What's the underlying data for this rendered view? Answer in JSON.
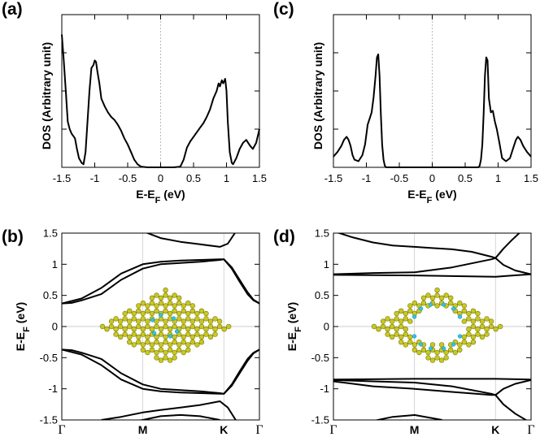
{
  "chart_data": [
    {
      "id": "a",
      "panel_label": "(a)",
      "type": "line",
      "xlabel": "E-E",
      "xlabel_sub": "F",
      "xlabel_unit": " (eV)",
      "ylabel": "DOS (Arbitrary unit)",
      "xlim": [
        -1.5,
        1.5
      ],
      "ylim": [
        0,
        1
      ],
      "xticks": [
        -1.5,
        -1,
        -0.5,
        0,
        0.5,
        1,
        1.5
      ],
      "xtick_labels": [
        "-1.5",
        "-1",
        "-0.5",
        "0",
        "0.5",
        "1",
        "1.5"
      ],
      "series": [
        {
          "name": "DOS",
          "x": [
            -1.5,
            -1.47,
            -1.44,
            -1.41,
            -1.38,
            -1.35,
            -1.3,
            -1.27,
            -1.24,
            -1.2,
            -1.17,
            -1.14,
            -1.11,
            -1.08,
            -1.05,
            -1.02,
            -1.0,
            -0.98,
            -0.96,
            -0.93,
            -0.9,
            -0.85,
            -0.8,
            -0.75,
            -0.7,
            -0.65,
            -0.6,
            -0.55,
            -0.5,
            -0.45,
            -0.4,
            -0.35,
            -0.3,
            -0.2,
            0,
            0.2,
            0.3,
            0.35,
            0.4,
            0.45,
            0.5,
            0.55,
            0.6,
            0.65,
            0.7,
            0.75,
            0.8,
            0.85,
            0.88,
            0.9,
            0.93,
            0.95,
            0.98,
            1.0,
            1.02,
            1.05,
            1.08,
            1.1,
            1.15,
            1.2,
            1.25,
            1.3,
            1.33,
            1.36,
            1.4,
            1.45,
            1.5
          ],
          "y": [
            0.87,
            0.7,
            0.5,
            0.3,
            0.25,
            0.22,
            0.19,
            0.12,
            0.06,
            0.03,
            0.02,
            0.1,
            0.3,
            0.5,
            0.65,
            0.67,
            0.7,
            0.69,
            0.63,
            0.55,
            0.45,
            0.4,
            0.36,
            0.33,
            0.31,
            0.28,
            0.24,
            0.19,
            0.15,
            0.1,
            0.05,
            0.02,
            0.005,
            0,
            0,
            0,
            0.005,
            0.05,
            0.13,
            0.17,
            0.2,
            0.23,
            0.26,
            0.29,
            0.33,
            0.38,
            0.45,
            0.5,
            0.55,
            0.53,
            0.57,
            0.55,
            0.58,
            0.5,
            0.3,
            0.1,
            0.03,
            0.02,
            0.06,
            0.12,
            0.16,
            0.18,
            0.16,
            0.14,
            0.12,
            0.16,
            0.25
          ]
        }
      ]
    },
    {
      "id": "c",
      "panel_label": "(c)",
      "type": "line",
      "xlabel": "E-E",
      "xlabel_sub": "F",
      "xlabel_unit": " (eV)",
      "ylabel": "DOS (Arbitrary unit)",
      "xlim": [
        -1.5,
        1.5
      ],
      "ylim": [
        0,
        1
      ],
      "xticks": [
        -1.5,
        -1,
        -0.5,
        0,
        0.5,
        1,
        1.5
      ],
      "xtick_labels": [
        "-1.5",
        "-1",
        "-0.5",
        "0",
        "0.5",
        "1",
        "1.5"
      ],
      "series": [
        {
          "name": "DOS",
          "x": [
            -1.5,
            -1.44,
            -1.38,
            -1.34,
            -1.3,
            -1.27,
            -1.24,
            -1.21,
            -1.18,
            -1.12,
            -1.06,
            -1.02,
            -0.98,
            -0.95,
            -0.92,
            -0.89,
            -0.86,
            -0.84,
            -0.82,
            -0.8,
            -0.78,
            -0.76,
            -0.74,
            -0.72,
            -0.7,
            -0.65,
            -0.6,
            0,
            0.6,
            0.65,
            0.7,
            0.72,
            0.74,
            0.76,
            0.78,
            0.8,
            0.82,
            0.84,
            0.86,
            0.89,
            0.92,
            0.95,
            0.98,
            1.02,
            1.06,
            1.12,
            1.18,
            1.21,
            1.24,
            1.27,
            1.3,
            1.34,
            1.38,
            1.44,
            1.5
          ],
          "y": [
            0.07,
            0.1,
            0.14,
            0.18,
            0.2,
            0.18,
            0.14,
            0.08,
            0.05,
            0.04,
            0.08,
            0.15,
            0.28,
            0.32,
            0.36,
            0.46,
            0.6,
            0.72,
            0.74,
            0.6,
            0.35,
            0.15,
            0.05,
            0.01,
            0,
            0,
            0,
            0,
            0,
            0,
            0,
            0.01,
            0.05,
            0.15,
            0.35,
            0.6,
            0.72,
            0.7,
            0.45,
            0.36,
            0.37,
            0.3,
            0.25,
            0.16,
            0.06,
            0.04,
            0.06,
            0.1,
            0.14,
            0.18,
            0.2,
            0.18,
            0.14,
            0.1,
            0.07
          ]
        }
      ]
    },
    {
      "id": "b",
      "panel_label": "(b)",
      "type": "line",
      "ylabel": "E-E",
      "ylabel_sub": "F",
      "ylabel_unit": " (eV)",
      "ylim": [
        -1.5,
        1.5
      ],
      "yticks": [
        -1.5,
        -1,
        -0.5,
        0,
        0.5,
        1,
        1.5
      ],
      "ytick_labels": [
        "-1.5",
        "-1",
        "-0.5",
        "0",
        "0.5",
        "1",
        "1.5"
      ],
      "xlim": [
        0,
        1
      ],
      "kpoints": [
        0,
        0.41,
        0.82,
        1.0
      ],
      "kpoint_labels": [
        "Γ",
        "M",
        "K",
        "Γ"
      ],
      "inset": "molecule structure (yellow carbon lattice with cyan hydrogen)",
      "series": [
        {
          "name": "band1",
          "x": [
            0,
            0.1,
            0.2,
            0.3,
            0.41,
            0.5,
            0.6,
            0.7,
            0.8,
            0.82,
            0.86,
            0.9,
            0.94,
            0.97,
            1.0
          ],
          "y": [
            0.37,
            0.45,
            0.62,
            0.85,
            1.0,
            1.04,
            1.06,
            1.07,
            1.08,
            1.08,
            0.95,
            0.75,
            0.55,
            0.43,
            0.37
          ]
        },
        {
          "name": "band2",
          "x": [
            0,
            0.05,
            0.1,
            0.2,
            0.3,
            0.41,
            0.5,
            0.6,
            0.7,
            0.8,
            0.82,
            0.86,
            0.9,
            0.94,
            0.97,
            1.0
          ],
          "y": [
            0.37,
            0.38,
            0.42,
            0.52,
            0.75,
            0.93,
            1.0,
            1.02,
            1.04,
            1.07,
            1.08,
            0.93,
            0.72,
            0.52,
            0.42,
            0.37
          ]
        },
        {
          "name": "band3",
          "x": [
            0.41,
            0.5,
            0.6,
            0.7,
            0.8,
            0.84,
            0.88
          ],
          "y": [
            1.53,
            1.42,
            1.36,
            1.32,
            1.28,
            1.33,
            1.52
          ]
        },
        {
          "name": "band1m",
          "x": [
            0,
            0.1,
            0.2,
            0.3,
            0.41,
            0.5,
            0.6,
            0.7,
            0.8,
            0.82,
            0.86,
            0.9,
            0.94,
            0.97,
            1.0
          ],
          "y": [
            -0.37,
            -0.45,
            -0.62,
            -0.85,
            -1.0,
            -1.04,
            -1.06,
            -1.07,
            -1.08,
            -1.08,
            -0.95,
            -0.75,
            -0.55,
            -0.43,
            -0.37
          ]
        },
        {
          "name": "band2m",
          "x": [
            0,
            0.05,
            0.1,
            0.2,
            0.3,
            0.41,
            0.5,
            0.6,
            0.7,
            0.8,
            0.82,
            0.86,
            0.9,
            0.94,
            0.97,
            1.0
          ],
          "y": [
            -0.37,
            -0.38,
            -0.42,
            -0.52,
            -0.75,
            -0.93,
            -1.0,
            -1.02,
            -1.04,
            -1.07,
            -1.08,
            -0.93,
            -0.72,
            -0.52,
            -0.42,
            -0.37
          ]
        },
        {
          "name": "band3m",
          "x": [
            0.2,
            0.3,
            0.41,
            0.5,
            0.6,
            0.7,
            0.8,
            0.84,
            0.88
          ],
          "y": [
            -1.5,
            -1.45,
            -1.38,
            -1.34,
            -1.3,
            -1.26,
            -1.2,
            -1.3,
            -1.5
          ]
        },
        {
          "name": "band4m",
          "x": [
            0.3,
            0.41,
            0.5,
            0.6,
            0.7,
            0.8
          ],
          "y": [
            -1.55,
            -1.5,
            -1.44,
            -1.42,
            -1.44,
            -1.5
          ]
        }
      ]
    },
    {
      "id": "d",
      "panel_label": "(d)",
      "type": "line",
      "ylabel": "E-E",
      "ylabel_sub": "F",
      "ylabel_unit": " (eV)",
      "ylim": [
        -1.5,
        1.5
      ],
      "yticks": [
        -1.5,
        -1,
        -0.5,
        0,
        0.5,
        1,
        1.5
      ],
      "ytick_labels": [
        "-1.5",
        "-1",
        "-0.5",
        "0",
        "0.5",
        "1",
        "1.5"
      ],
      "xlim": [
        0,
        1
      ],
      "kpoints": [
        0,
        0.41,
        0.82,
        1.0
      ],
      "kpoint_labels": [
        "Γ",
        "M",
        "K",
        "Γ"
      ],
      "inset": "molecule structure with central pore (yellow carbon lattice with cyan hydrogen)",
      "series": [
        {
          "name": "flat_up",
          "x": [
            0,
            0.41,
            0.82,
            1.0
          ],
          "y": [
            0.83,
            0.82,
            0.8,
            0.84
          ]
        },
        {
          "name": "up2",
          "x": [
            0,
            0.2,
            0.41,
            0.6,
            0.8,
            0.82,
            0.86,
            0.92,
            1.0
          ],
          "y": [
            0.84,
            0.86,
            0.87,
            0.95,
            1.08,
            1.1,
            0.99,
            0.9,
            0.84
          ]
        },
        {
          "name": "up3",
          "x": [
            0.0,
            0.1,
            0.2,
            0.3,
            0.41,
            0.5,
            0.6,
            0.7,
            0.8,
            0.82,
            0.86,
            0.9,
            0.95
          ],
          "y": [
            1.53,
            1.43,
            1.35,
            1.3,
            1.28,
            1.26,
            1.24,
            1.2,
            1.12,
            1.1,
            1.25,
            1.38,
            1.53
          ]
        },
        {
          "name": "flat_dn",
          "x": [
            0,
            0.41,
            0.82,
            1.0
          ],
          "y": [
            -0.85,
            -0.84,
            -0.84,
            -0.85
          ]
        },
        {
          "name": "dn2",
          "x": [
            0,
            0.2,
            0.41,
            0.6,
            0.8,
            0.82,
            0.86,
            0.92,
            1.0
          ],
          "y": [
            -0.86,
            -0.88,
            -0.9,
            -0.96,
            -1.08,
            -1.1,
            -1.25,
            -1.4,
            -1.55
          ]
        },
        {
          "name": "dn3",
          "x": [
            0,
            0.1,
            0.2,
            0.41,
            0.6,
            0.8,
            0.82,
            0.86,
            0.92,
            1.0
          ],
          "y": [
            -0.88,
            -0.92,
            -0.96,
            -1.0,
            -1.05,
            -1.1,
            -1.1,
            -1.0,
            -0.92,
            -0.86
          ]
        },
        {
          "name": "dn4",
          "x": [
            0.15,
            0.3,
            0.41,
            0.55
          ],
          "y": [
            -1.55,
            -1.45,
            -1.42,
            -1.5
          ]
        }
      ]
    }
  ]
}
